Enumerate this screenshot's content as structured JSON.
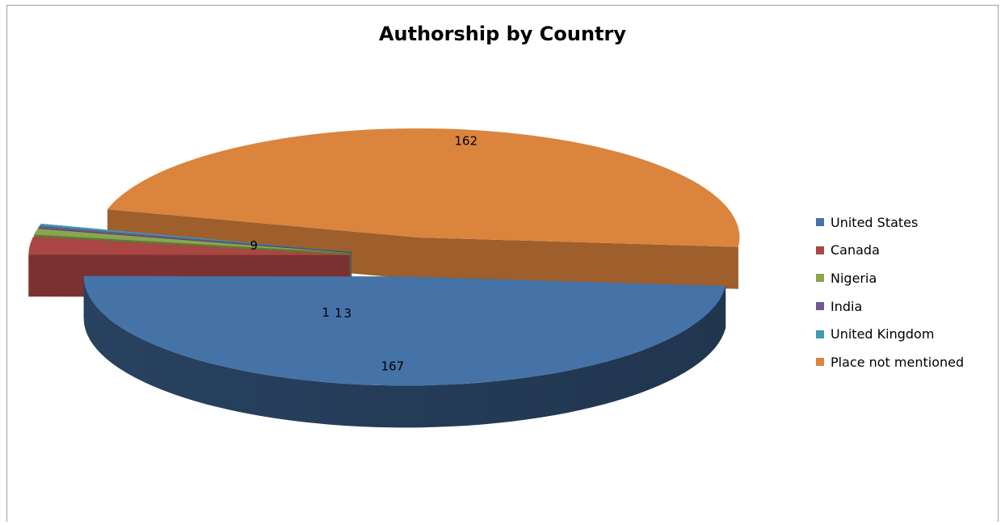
{
  "chart_data": {
    "type": "pie",
    "title": "Authorship by Country",
    "categories": [
      "United States",
      "Canada",
      "Nigeria",
      "India",
      "United Kingdom",
      "Place not mentioned"
    ],
    "values": [
      167,
      9,
      3,
      1,
      1,
      162
    ],
    "data_labels": [
      "167",
      "9",
      "3",
      "1",
      "1",
      "162"
    ],
    "colors": [
      "#4572A7",
      "#AA4643",
      "#89A54E",
      "#71588F",
      "#4198AF",
      "#DB843D"
    ],
    "style": "3d exploded",
    "legend_position": "right"
  }
}
